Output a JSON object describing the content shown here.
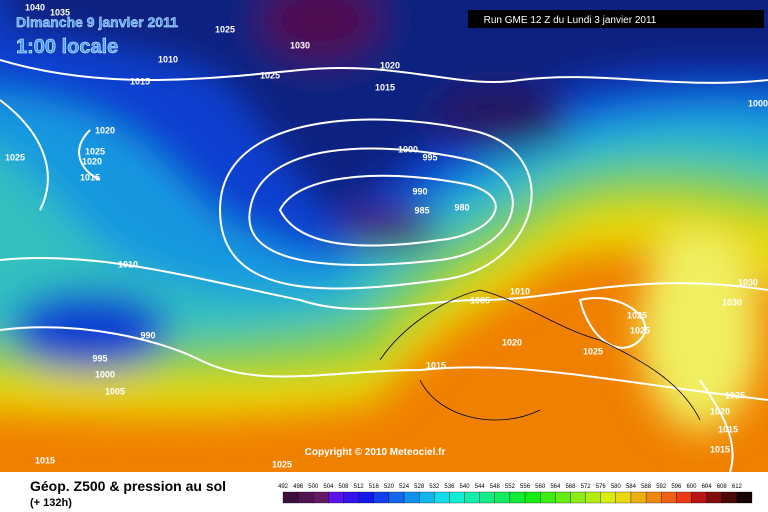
{
  "header": {
    "date": "Dimanche 9 janvier 2011",
    "time": "1:00 locale",
    "run": "Run GME 12 Z du Lundi 3 janvier 2011"
  },
  "copyright": "Copyright © 2010 Meteociel.fr",
  "legend": {
    "title": "Géop. Z500 & pression au sol",
    "lead": "(+ 132h)",
    "scale": [
      492,
      496,
      500,
      504,
      508,
      512,
      516,
      520,
      524,
      528,
      532,
      536,
      540,
      544,
      548,
      552,
      556,
      560,
      564,
      568,
      572,
      576,
      580,
      584,
      588,
      592,
      596,
      600,
      604,
      608,
      612
    ]
  },
  "isobars": [
    1040,
    1035,
    1025,
    1030,
    1010,
    1020,
    1025,
    1015,
    1015,
    1000,
    1020,
    1025,
    1025,
    1020,
    1015,
    1000,
    995,
    990,
    985,
    980,
    1010,
    1005,
    1010,
    990,
    1020,
    1030,
    1030,
    1025,
    1025,
    1025,
    995,
    1015,
    1000,
    1005,
    1025,
    1020,
    1015,
    1015,
    1015,
    1025
  ]
}
